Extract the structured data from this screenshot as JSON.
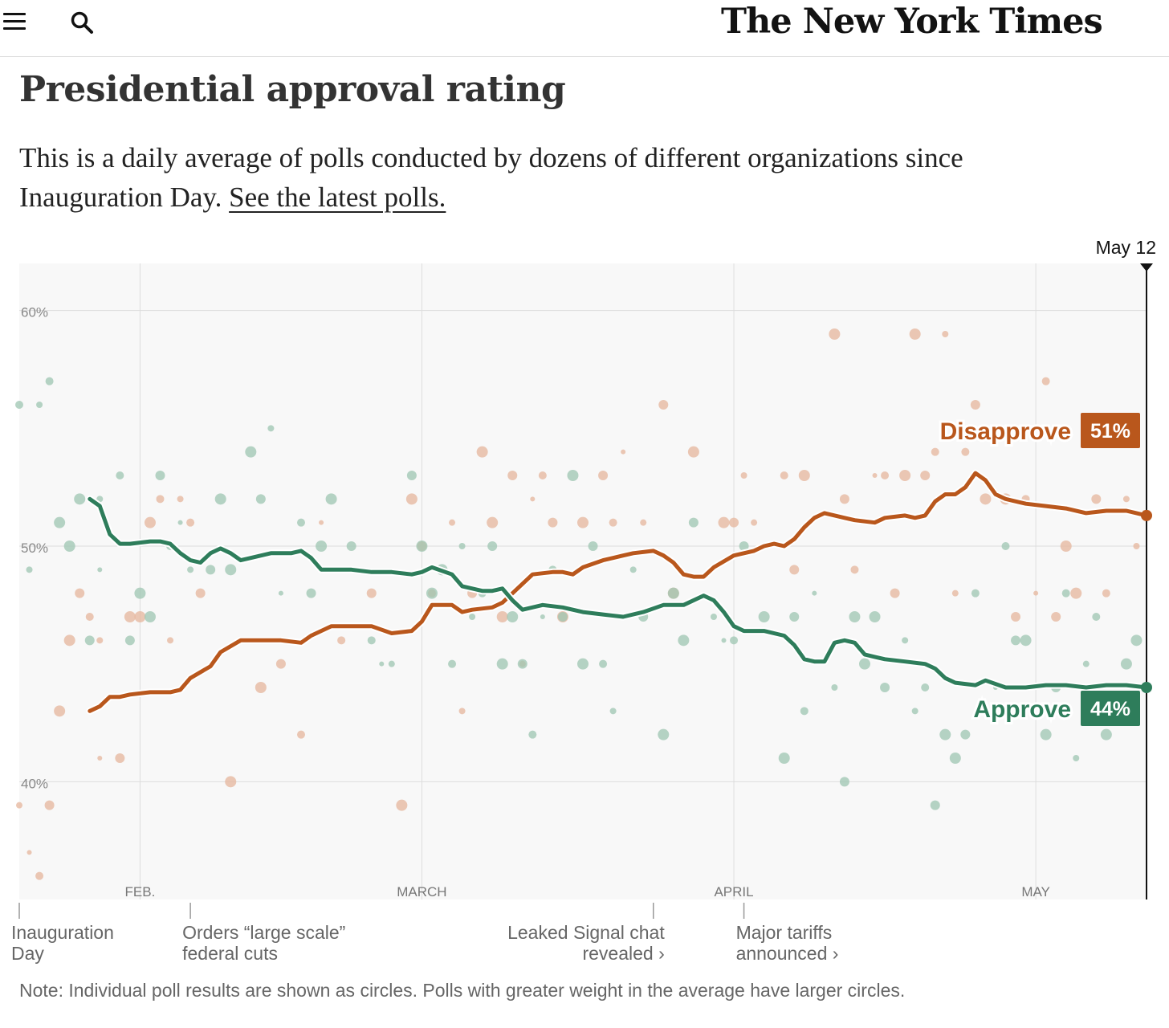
{
  "header": {
    "masthead": "The New York Times",
    "menu_icon": "hamburger-menu-icon",
    "search_icon": "search-icon"
  },
  "headline": "Presidential approval rating",
  "summary": {
    "text": "This is a daily average of polls conducted by dozens of different organizations since Inauguration Day. ",
    "link_text": "See the latest polls."
  },
  "note": "Note: Individual poll results are shown as circles. Polls with greater weight in the average have larger circles.",
  "colors": {
    "approve": "#2e7d5b",
    "disapprove": "#b9571c",
    "approve_dot": "#9ec5b2",
    "disapprove_dot": "#e6b59c",
    "plot_bg": "#f8f8f8",
    "grid": "#dddddd"
  },
  "chart_data": {
    "type": "line",
    "ylim": [
      35,
      62
    ],
    "xlim": [
      "2025-01-20",
      "2025-05-12"
    ],
    "y_ticks": [
      {
        "value": 60,
        "label": "60%"
      },
      {
        "value": 50,
        "label": "50%"
      },
      {
        "value": 40,
        "label": "40%"
      }
    ],
    "x_ticks": [
      {
        "date": "2025-02-01",
        "label": "FEB."
      },
      {
        "date": "2025-03-01",
        "label": "MARCH"
      },
      {
        "date": "2025-04-01",
        "label": "APRIL"
      },
      {
        "date": "2025-05-01",
        "label": "MAY"
      }
    ],
    "current_date_label": "May 12",
    "series": [
      {
        "name": "Disapprove",
        "label": "51%",
        "x": [
          "2025-01-27",
          "2025-01-28",
          "2025-01-29",
          "2025-01-30",
          "2025-01-31",
          "2025-02-02",
          "2025-02-04",
          "2025-02-05",
          "2025-02-06",
          "2025-02-08",
          "2025-02-09",
          "2025-02-11",
          "2025-02-12",
          "2025-02-15",
          "2025-02-17",
          "2025-02-18",
          "2025-02-20",
          "2025-02-22",
          "2025-02-24",
          "2025-02-26",
          "2025-02-28",
          "2025-03-01",
          "2025-03-02",
          "2025-03-04",
          "2025-03-05",
          "2025-03-06",
          "2025-03-08",
          "2025-03-09",
          "2025-03-10",
          "2025-03-11",
          "2025-03-12",
          "2025-03-14",
          "2025-03-15",
          "2025-03-16",
          "2025-03-17",
          "2025-03-19",
          "2025-03-20",
          "2025-03-21",
          "2025-03-22",
          "2025-03-24",
          "2025-03-25",
          "2025-03-26",
          "2025-03-27",
          "2025-03-28",
          "2025-03-29",
          "2025-03-30",
          "2025-04-01",
          "2025-04-02",
          "2025-04-03",
          "2025-04-04",
          "2025-04-05",
          "2025-04-06",
          "2025-04-07",
          "2025-04-08",
          "2025-04-09",
          "2025-04-10",
          "2025-04-12",
          "2025-04-13",
          "2025-04-15",
          "2025-04-16",
          "2025-04-18",
          "2025-04-19",
          "2025-04-20",
          "2025-04-21",
          "2025-04-22",
          "2025-04-23",
          "2025-04-24",
          "2025-04-25",
          "2025-04-26",
          "2025-04-27",
          "2025-04-28",
          "2025-04-30",
          "2025-05-02",
          "2025-05-04",
          "2025-05-06",
          "2025-05-08",
          "2025-05-10",
          "2025-05-12"
        ],
        "y": [
          43.0,
          43.2,
          43.6,
          43.6,
          43.7,
          43.8,
          43.8,
          43.9,
          44.4,
          44.9,
          45.5,
          46.0,
          46.0,
          46.0,
          45.9,
          46.2,
          46.6,
          46.6,
          46.6,
          46.3,
          46.4,
          46.8,
          47.5,
          47.5,
          47.2,
          47.3,
          47.4,
          47.6,
          48.0,
          48.4,
          48.8,
          48.9,
          48.9,
          48.8,
          49.1,
          49.4,
          49.5,
          49.6,
          49.7,
          49.8,
          49.6,
          49.3,
          48.8,
          48.7,
          48.7,
          49.1,
          49.6,
          49.7,
          49.8,
          50.0,
          50.1,
          50.0,
          50.3,
          50.8,
          51.2,
          51.4,
          51.2,
          51.1,
          51.0,
          51.2,
          51.3,
          51.2,
          51.3,
          51.9,
          52.2,
          52.2,
          52.5,
          53.1,
          52.8,
          52.2,
          52.0,
          51.8,
          51.7,
          51.6,
          51.4,
          51.5,
          51.5,
          51.3
        ]
      },
      {
        "name": "Approve",
        "label": "44%",
        "x": [
          "2025-01-27",
          "2025-01-28",
          "2025-01-29",
          "2025-01-30",
          "2025-01-31",
          "2025-02-02",
          "2025-02-03",
          "2025-02-04",
          "2025-02-05",
          "2025-02-06",
          "2025-02-07",
          "2025-02-08",
          "2025-02-09",
          "2025-02-10",
          "2025-02-11",
          "2025-02-12",
          "2025-02-14",
          "2025-02-16",
          "2025-02-17",
          "2025-02-18",
          "2025-02-19",
          "2025-02-22",
          "2025-02-24",
          "2025-02-26",
          "2025-02-28",
          "2025-03-01",
          "2025-03-02",
          "2025-03-04",
          "2025-03-05",
          "2025-03-07",
          "2025-03-08",
          "2025-03-09",
          "2025-03-10",
          "2025-03-11",
          "2025-03-13",
          "2025-03-15",
          "2025-03-17",
          "2025-03-19",
          "2025-03-21",
          "2025-03-23",
          "2025-03-25",
          "2025-03-27",
          "2025-03-29",
          "2025-03-30",
          "2025-03-31",
          "2025-04-01",
          "2025-04-02",
          "2025-04-03",
          "2025-04-04",
          "2025-04-06",
          "2025-04-07",
          "2025-04-08",
          "2025-04-09",
          "2025-04-10",
          "2025-04-11",
          "2025-04-12",
          "2025-04-13",
          "2025-04-14",
          "2025-04-15",
          "2025-04-16",
          "2025-04-18",
          "2025-04-20",
          "2025-04-21",
          "2025-04-22",
          "2025-04-23",
          "2025-04-25",
          "2025-04-26",
          "2025-04-28",
          "2025-04-30",
          "2025-05-02",
          "2025-05-04",
          "2025-05-06",
          "2025-05-08",
          "2025-05-10",
          "2025-05-12"
        ],
        "y": [
          52.0,
          51.7,
          50.5,
          50.1,
          50.1,
          50.2,
          50.2,
          50.1,
          49.7,
          49.4,
          49.3,
          49.7,
          49.9,
          49.7,
          49.4,
          49.5,
          49.7,
          49.7,
          49.8,
          49.5,
          49.0,
          49.0,
          48.9,
          48.9,
          48.8,
          48.9,
          49.1,
          48.8,
          48.3,
          48.1,
          48.1,
          48.2,
          47.7,
          47.3,
          47.5,
          47.4,
          47.2,
          47.1,
          47.0,
          47.2,
          47.5,
          47.5,
          47.9,
          47.7,
          47.2,
          46.6,
          46.4,
          46.4,
          46.4,
          46.2,
          45.8,
          45.2,
          45.1,
          45.1,
          45.9,
          46.0,
          45.9,
          45.4,
          45.3,
          45.2,
          45.1,
          45.0,
          44.8,
          44.4,
          44.2,
          44.1,
          44.3,
          44.0,
          44.0,
          44.1,
          44.1,
          44.0,
          44.1,
          44.1,
          44.0
        ]
      }
    ],
    "annotations": [
      {
        "date": "2025-01-20",
        "label": "Inauguration Day",
        "align": "left"
      },
      {
        "date": "2025-02-06",
        "label": "Orders “large scale” federal cuts",
        "align": "left"
      },
      {
        "date": "2025-03-24",
        "label": "Leaked Signal chat revealed ›",
        "align": "right"
      },
      {
        "date": "2025-04-02",
        "label": "Major tariffs announced ›",
        "align": "left"
      }
    ],
    "polls": {
      "disapprove": [
        [
          "2025-01-20",
          39
        ],
        [
          "2025-01-21",
          37
        ],
        [
          "2025-01-22",
          36
        ],
        [
          "2025-01-23",
          39
        ],
        [
          "2025-01-24",
          43
        ],
        [
          "2025-01-25",
          46
        ],
        [
          "2025-01-26",
          48
        ],
        [
          "2025-01-27",
          47
        ],
        [
          "2025-01-28",
          41
        ],
        [
          "2025-01-28",
          46
        ],
        [
          "2025-01-30",
          41
        ],
        [
          "2025-01-31",
          47
        ],
        [
          "2025-02-01",
          47
        ],
        [
          "2025-02-02",
          51
        ],
        [
          "2025-02-03",
          52
        ],
        [
          "2025-02-04",
          46
        ],
        [
          "2025-02-05",
          52
        ],
        [
          "2025-02-06",
          51
        ],
        [
          "2025-02-07",
          48
        ],
        [
          "2025-02-10",
          40
        ],
        [
          "2025-02-13",
          44
        ],
        [
          "2025-02-15",
          45
        ],
        [
          "2025-02-17",
          42
        ],
        [
          "2025-02-19",
          51
        ],
        [
          "2025-02-21",
          46
        ],
        [
          "2025-02-24",
          48
        ],
        [
          "2025-02-27",
          39
        ],
        [
          "2025-02-28",
          52
        ],
        [
          "2025-03-01",
          50
        ],
        [
          "2025-03-02",
          48
        ],
        [
          "2025-03-04",
          51
        ],
        [
          "2025-03-05",
          43
        ],
        [
          "2025-03-06",
          48
        ],
        [
          "2025-03-07",
          54
        ],
        [
          "2025-03-08",
          51
        ],
        [
          "2025-03-09",
          47
        ],
        [
          "2025-03-10",
          53
        ],
        [
          "2025-03-11",
          45
        ],
        [
          "2025-03-12",
          52
        ],
        [
          "2025-03-13",
          53
        ],
        [
          "2025-03-14",
          51
        ],
        [
          "2025-03-15",
          47
        ],
        [
          "2025-03-17",
          51
        ],
        [
          "2025-03-19",
          53
        ],
        [
          "2025-03-20",
          51
        ],
        [
          "2025-03-21",
          54
        ],
        [
          "2025-03-23",
          51
        ],
        [
          "2025-03-25",
          56
        ],
        [
          "2025-03-26",
          48
        ],
        [
          "2025-03-28",
          54
        ],
        [
          "2025-03-31",
          51
        ],
        [
          "2025-04-01",
          51
        ],
        [
          "2025-04-02",
          53
        ],
        [
          "2025-04-03",
          51
        ],
        [
          "2025-04-06",
          53
        ],
        [
          "2025-04-07",
          49
        ],
        [
          "2025-04-08",
          53
        ],
        [
          "2025-04-11",
          59
        ],
        [
          "2025-04-12",
          52
        ],
        [
          "2025-04-13",
          49
        ],
        [
          "2025-04-15",
          53
        ],
        [
          "2025-04-16",
          53
        ],
        [
          "2025-04-17",
          48
        ],
        [
          "2025-04-18",
          53
        ],
        [
          "2025-04-19",
          59
        ],
        [
          "2025-04-20",
          53
        ],
        [
          "2025-04-21",
          54
        ],
        [
          "2025-04-22",
          59
        ],
        [
          "2025-04-23",
          48
        ],
        [
          "2025-04-24",
          54
        ],
        [
          "2025-04-25",
          56
        ],
        [
          "2025-04-26",
          52
        ],
        [
          "2025-04-28",
          52
        ],
        [
          "2025-04-29",
          47
        ],
        [
          "2025-04-30",
          52
        ],
        [
          "2025-05-01",
          48
        ],
        [
          "2025-05-02",
          57
        ],
        [
          "2025-05-03",
          47
        ],
        [
          "2025-05-04",
          50
        ],
        [
          "2025-05-05",
          48
        ],
        [
          "2025-05-07",
          52
        ],
        [
          "2025-05-08",
          48
        ],
        [
          "2025-05-10",
          52
        ],
        [
          "2025-05-11",
          50
        ]
      ],
      "approve": [
        [
          "2025-01-20",
          56
        ],
        [
          "2025-01-21",
          49
        ],
        [
          "2025-01-22",
          56
        ],
        [
          "2025-01-23",
          57
        ],
        [
          "2025-01-24",
          51
        ],
        [
          "2025-01-25",
          50
        ],
        [
          "2025-01-26",
          52
        ],
        [
          "2025-01-27",
          46
        ],
        [
          "2025-01-28",
          52
        ],
        [
          "2025-01-28",
          49
        ],
        [
          "2025-01-30",
          53
        ],
        [
          "2025-01-31",
          46
        ],
        [
          "2025-02-01",
          48
        ],
        [
          "2025-02-02",
          47
        ],
        [
          "2025-02-03",
          53
        ],
        [
          "2025-02-04",
          50
        ],
        [
          "2025-02-05",
          51
        ],
        [
          "2025-02-06",
          49
        ],
        [
          "2025-02-08",
          49
        ],
        [
          "2025-02-09",
          52
        ],
        [
          "2025-02-10",
          49
        ],
        [
          "2025-02-12",
          54
        ],
        [
          "2025-02-13",
          52
        ],
        [
          "2025-02-14",
          55
        ],
        [
          "2025-02-15",
          48
        ],
        [
          "2025-02-17",
          51
        ],
        [
          "2025-02-18",
          48
        ],
        [
          "2025-02-19",
          50
        ],
        [
          "2025-02-20",
          52
        ],
        [
          "2025-02-22",
          50
        ],
        [
          "2025-02-24",
          46
        ],
        [
          "2025-02-25",
          45
        ],
        [
          "2025-02-26",
          45
        ],
        [
          "2025-02-28",
          53
        ],
        [
          "2025-03-01",
          50
        ],
        [
          "2025-03-02",
          48
        ],
        [
          "2025-03-03",
          49
        ],
        [
          "2025-03-04",
          45
        ],
        [
          "2025-03-05",
          50
        ],
        [
          "2025-03-06",
          47
        ],
        [
          "2025-03-07",
          48
        ],
        [
          "2025-03-08",
          50
        ],
        [
          "2025-03-09",
          45
        ],
        [
          "2025-03-10",
          47
        ],
        [
          "2025-03-11",
          45
        ],
        [
          "2025-03-12",
          42
        ],
        [
          "2025-03-13",
          47
        ],
        [
          "2025-03-14",
          49
        ],
        [
          "2025-03-15",
          47
        ],
        [
          "2025-03-16",
          53
        ],
        [
          "2025-03-17",
          45
        ],
        [
          "2025-03-18",
          50
        ],
        [
          "2025-03-19",
          45
        ],
        [
          "2025-03-20",
          43
        ],
        [
          "2025-03-22",
          49
        ],
        [
          "2025-03-23",
          47
        ],
        [
          "2025-03-25",
          42
        ],
        [
          "2025-03-26",
          48
        ],
        [
          "2025-03-27",
          46
        ],
        [
          "2025-03-28",
          51
        ],
        [
          "2025-03-30",
          47
        ],
        [
          "2025-03-31",
          46
        ],
        [
          "2025-04-01",
          46
        ],
        [
          "2025-04-02",
          50
        ],
        [
          "2025-04-04",
          47
        ],
        [
          "2025-04-06",
          41
        ],
        [
          "2025-04-07",
          47
        ],
        [
          "2025-04-08",
          43
        ],
        [
          "2025-04-09",
          48
        ],
        [
          "2025-04-11",
          44
        ],
        [
          "2025-04-12",
          40
        ],
        [
          "2025-04-13",
          47
        ],
        [
          "2025-04-14",
          45
        ],
        [
          "2025-04-15",
          47
        ],
        [
          "2025-04-16",
          44
        ],
        [
          "2025-04-18",
          46
        ],
        [
          "2025-04-19",
          43
        ],
        [
          "2025-04-20",
          44
        ],
        [
          "2025-04-21",
          39
        ],
        [
          "2025-04-22",
          42
        ],
        [
          "2025-04-23",
          41
        ],
        [
          "2025-04-24",
          42
        ],
        [
          "2025-04-25",
          48
        ],
        [
          "2025-04-27",
          44
        ],
        [
          "2025-04-28",
          50
        ],
        [
          "2025-04-29",
          46
        ],
        [
          "2025-04-30",
          46
        ],
        [
          "2025-05-02",
          42
        ],
        [
          "2025-05-03",
          44
        ],
        [
          "2025-05-04",
          48
        ],
        [
          "2025-05-05",
          41
        ],
        [
          "2025-05-06",
          45
        ],
        [
          "2025-05-07",
          47
        ],
        [
          "2025-05-08",
          42
        ],
        [
          "2025-05-10",
          45
        ],
        [
          "2025-05-11",
          46
        ]
      ]
    }
  }
}
